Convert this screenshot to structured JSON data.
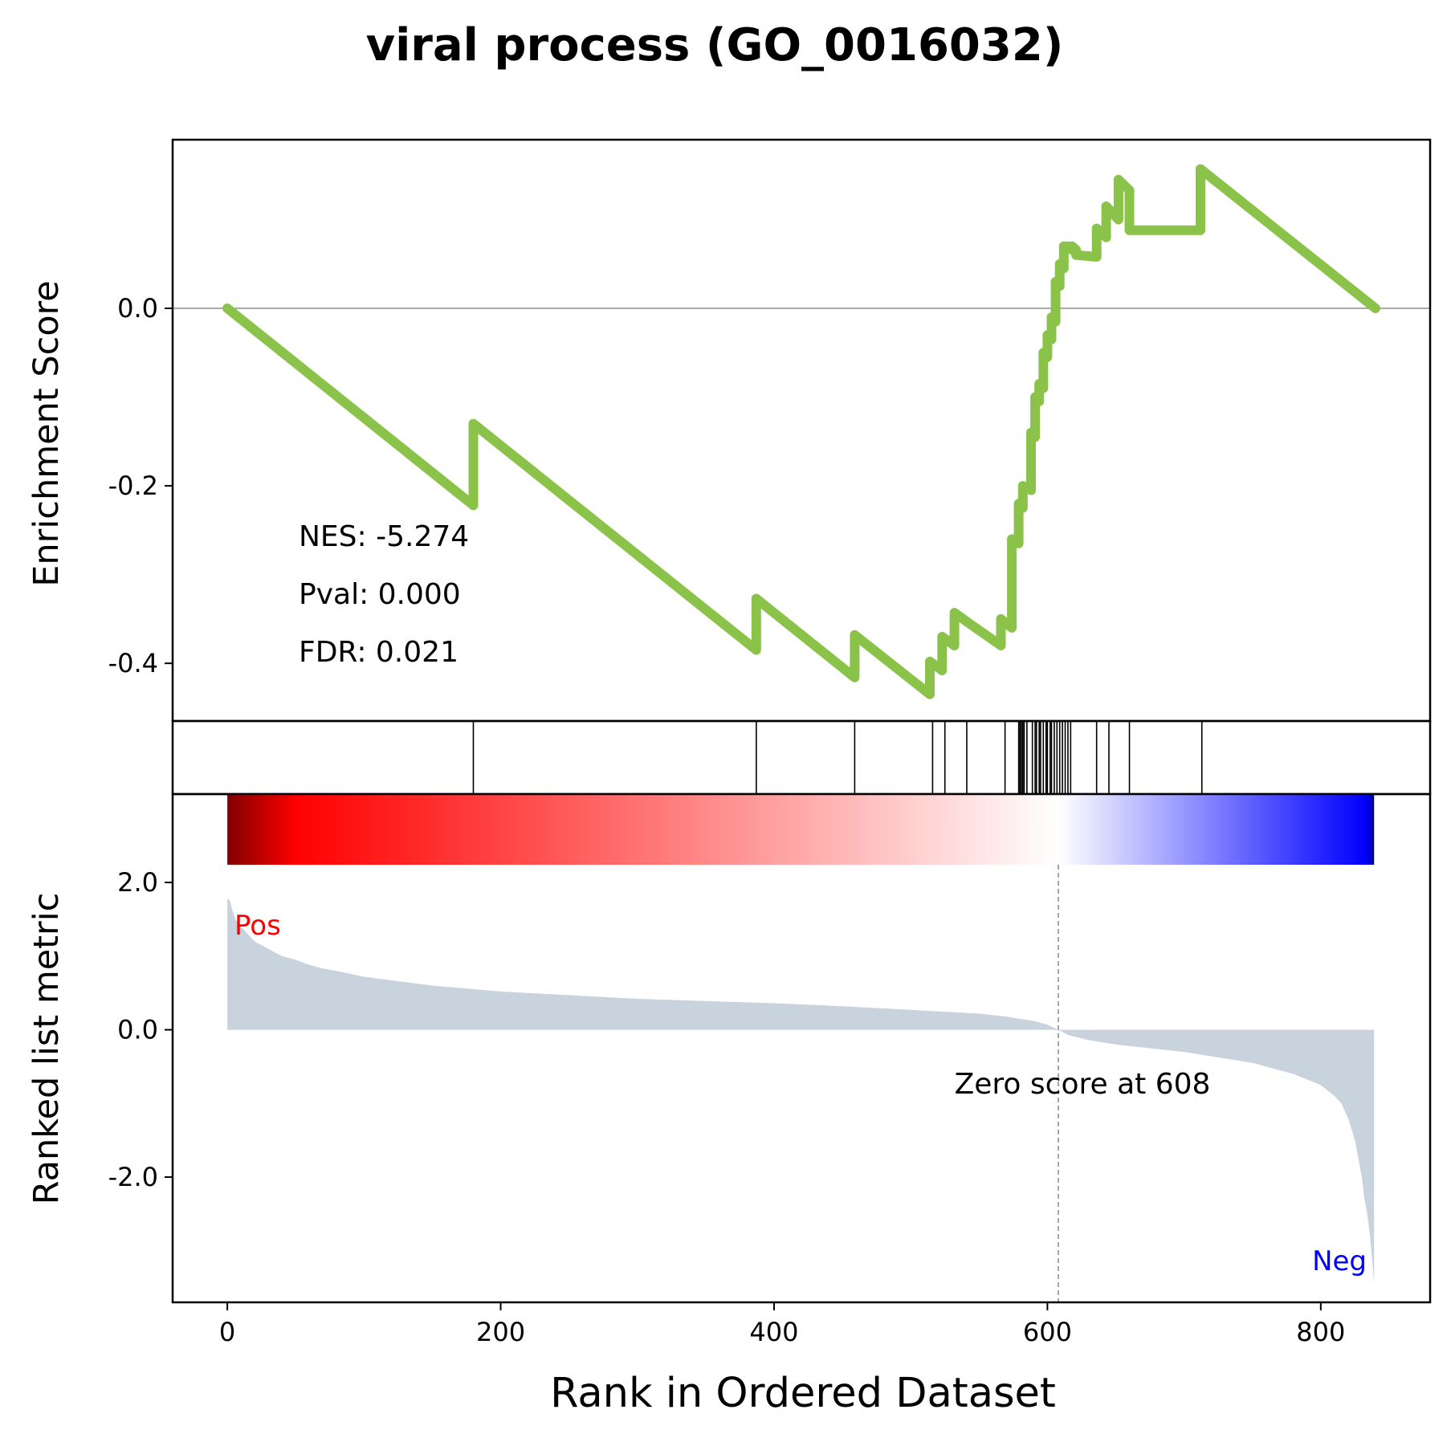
{
  "chart_data": {
    "type": "line",
    "title": "viral process (GO_0016032)",
    "xlabel": "Rank in Ordered Dataset",
    "xlim": [
      -40,
      880
    ],
    "xticks": [
      0,
      200,
      400,
      600,
      800
    ],
    "xtick_labels": [
      "0",
      "200",
      "400",
      "600",
      "800"
    ],
    "colors": {
      "es_line": "#8bc34a",
      "metric_fill": "#c8d3dd",
      "hit_line": "#000000",
      "zero_line": "#888888",
      "pos": "#ff0000",
      "neg": "#0000ff"
    },
    "enrichment": {
      "ylabel": "Enrichment Score",
      "ylim": [
        -0.465,
        0.19
      ],
      "yticks": [
        0.0,
        -0.2,
        -0.4
      ],
      "ytick_labels": [
        "0.0",
        "-0.2",
        "-0.4"
      ],
      "x": [
        0,
        180,
        180,
        387,
        387,
        459,
        459,
        514,
        514,
        523,
        523,
        532,
        532,
        541,
        541,
        566,
        566,
        574,
        574,
        579,
        579,
        582,
        582,
        588,
        588,
        591,
        591,
        594,
        594,
        597,
        597,
        600,
        600,
        603,
        603,
        606,
        606,
        609,
        609,
        612,
        612,
        615,
        615,
        618,
        618,
        621,
        621,
        636,
        636,
        643,
        643,
        652,
        652,
        660,
        660,
        712,
        712,
        840
      ],
      "y": [
        0.0,
        -0.222,
        -0.13,
        -0.385,
        -0.327,
        -0.416,
        -0.368,
        -0.435,
        -0.398,
        -0.408,
        -0.37,
        -0.38,
        -0.343,
        -0.353,
        -0.353,
        -0.38,
        -0.35,
        -0.36,
        -0.26,
        -0.265,
        -0.22,
        -0.225,
        -0.2,
        -0.205,
        -0.14,
        -0.145,
        -0.1,
        -0.105,
        -0.085,
        -0.09,
        -0.05,
        -0.055,
        -0.03,
        -0.035,
        -0.01,
        -0.015,
        0.03,
        0.025,
        0.05,
        0.045,
        0.07,
        0.068,
        0.07,
        0.066,
        0.07,
        0.066,
        0.06,
        0.058,
        0.09,
        0.08,
        0.115,
        0.1,
        0.145,
        0.133,
        0.088,
        0.088,
        0.157,
        0.0
      ],
      "stats": [
        "NES: -5.274",
        "Pval: 0.000",
        "FDR: 0.021"
      ]
    },
    "hits": [
      180,
      387,
      459,
      516,
      525,
      541,
      569,
      579,
      580,
      581,
      582,
      583,
      585,
      589,
      591,
      592,
      594,
      595,
      597,
      599,
      600,
      602,
      603,
      605,
      607,
      609,
      611,
      613,
      615,
      617,
      636,
      645,
      660,
      713
    ],
    "ranked_metric": {
      "ylabel": "Ranked list metric",
      "ylim": [
        -3.7,
        3.2
      ],
      "yticks": [
        2.0,
        0.0,
        -2.0
      ],
      "ytick_labels": [
        "2.0",
        "0.0",
        "-2.0"
      ],
      "x": [
        0,
        2,
        4,
        6,
        8,
        10,
        15,
        20,
        30,
        40,
        50,
        60,
        70,
        80,
        100,
        150,
        200,
        300,
        400,
        450,
        500,
        550,
        570,
        590,
        600,
        608,
        615,
        630,
        650,
        700,
        750,
        780,
        800,
        810,
        815,
        820,
        825,
        828,
        830,
        832,
        834,
        836,
        838,
        839
      ],
      "y": [
        1.78,
        1.75,
        1.6,
        1.5,
        1.45,
        1.4,
        1.3,
        1.2,
        1.1,
        1.0,
        0.95,
        0.88,
        0.83,
        0.8,
        0.72,
        0.6,
        0.52,
        0.42,
        0.36,
        0.32,
        0.27,
        0.22,
        0.18,
        0.12,
        0.07,
        0.0,
        -0.07,
        -0.14,
        -0.2,
        -0.3,
        -0.45,
        -0.6,
        -0.75,
        -0.9,
        -1.0,
        -1.2,
        -1.5,
        -1.8,
        -2.0,
        -2.3,
        -2.5,
        -2.8,
        -3.2,
        -3.45
      ],
      "pos_label": "Pos",
      "neg_label": "Neg",
      "zero_rank": 608,
      "zero_label": "Zero score at 608"
    },
    "colorbar": {
      "x_range": [
        0,
        839
      ],
      "zero_at": 608,
      "stops": [
        "#800000",
        "#ff0000",
        "#ffffff",
        "#0000ff",
        "#00008b"
      ]
    }
  }
}
